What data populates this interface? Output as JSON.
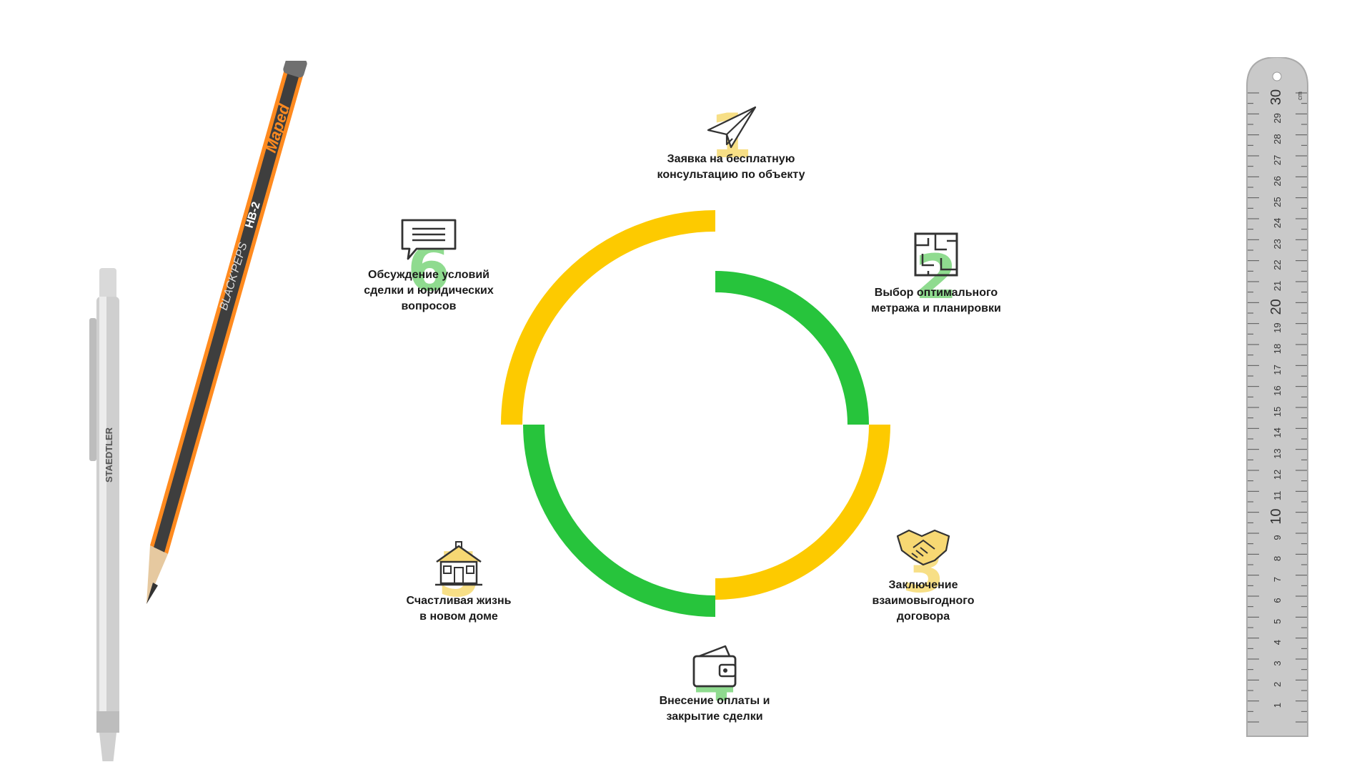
{
  "colors": {
    "yellow": "#fdca00",
    "green": "#27c43c",
    "icon_stroke": "#333333"
  },
  "steps": [
    {
      "number": "1",
      "label_line1": "Заявка на бесплатную",
      "label_line2": "консультацию по объекту",
      "label_line3": "",
      "icon": "paper-plane-icon",
      "color": "yellow"
    },
    {
      "number": "2",
      "label_line1": "Выбор оптимального",
      "label_line2": "метража и планировки",
      "label_line3": "",
      "icon": "floor-plan-icon",
      "color": "green"
    },
    {
      "number": "3",
      "label_line1": "Заключение",
      "label_line2": "взаимовыгодного",
      "label_line3": "договора",
      "icon": "handshake-icon",
      "color": "yellow"
    },
    {
      "number": "4",
      "label_line1": "Внесение оплаты и",
      "label_line2": "закрытие сделки",
      "label_line3": "",
      "icon": "wallet-icon",
      "color": "green"
    },
    {
      "number": "5",
      "label_line1": "Счастливая жизнь",
      "label_line2": "в новом доме",
      "label_line3": "",
      "icon": "house-icon",
      "color": "yellow"
    },
    {
      "number": "6",
      "label_line1": "Обсуждение условий",
      "label_line2": "сделки и юридических",
      "label_line3": "вопросов",
      "icon": "chat-message-icon",
      "color": "green"
    }
  ],
  "decor": {
    "pencil_brand": "Maped",
    "pencil_model": "BLACK'PEPS",
    "pencil_grade": "HB-2",
    "mech_pencil_brand": "STAEDTLER",
    "ruler_unit": "cm"
  }
}
